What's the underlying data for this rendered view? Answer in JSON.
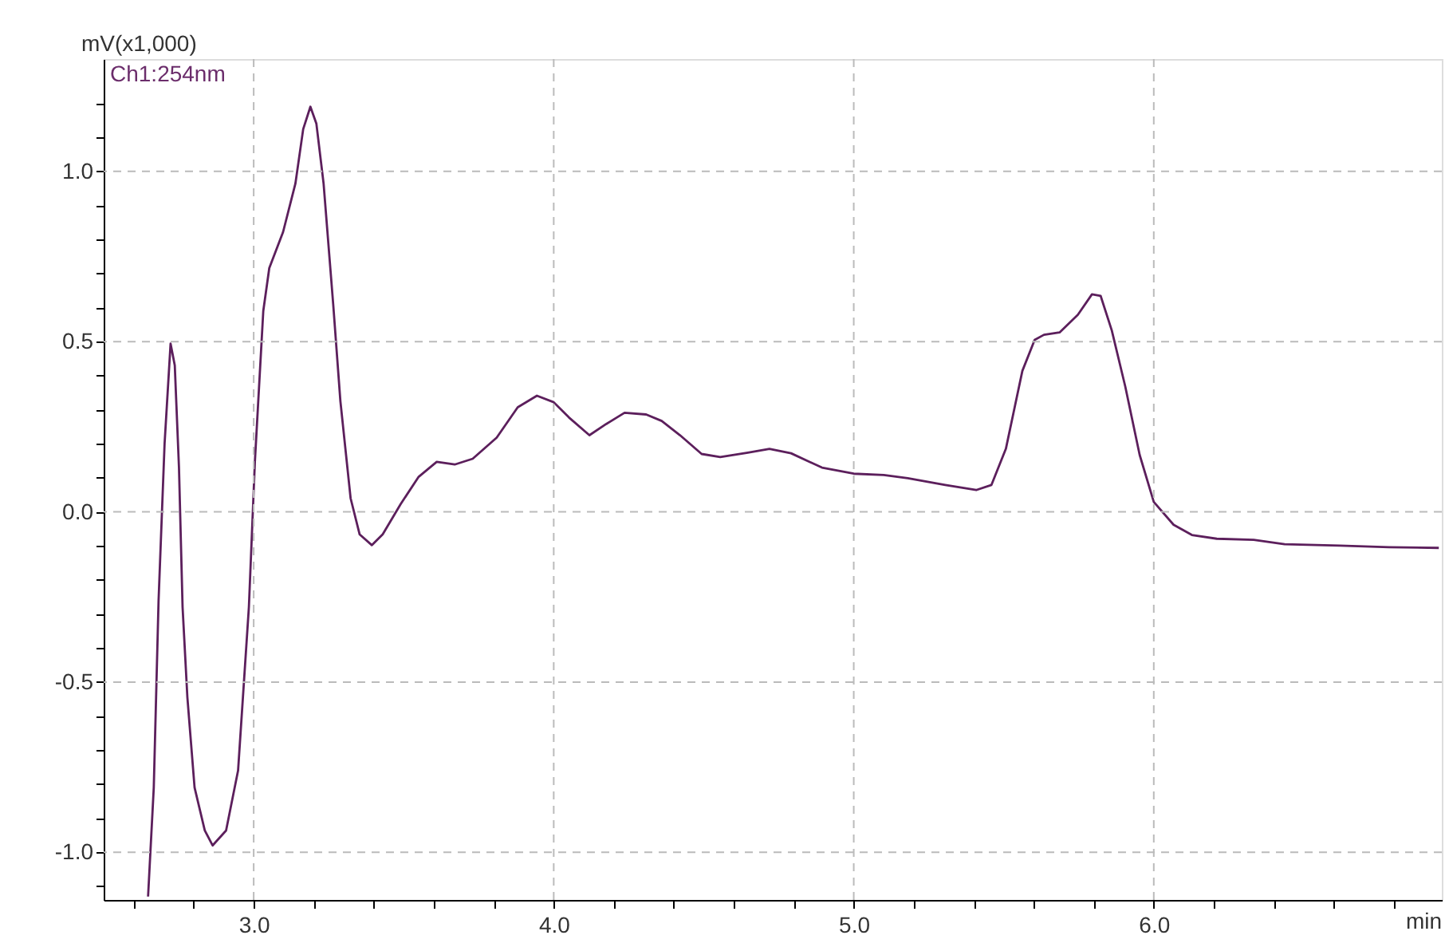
{
  "chart_data": {
    "type": "line",
    "xlabel": "min",
    "ylabel": "mV(x1,000)",
    "annotations": [
      "Ch1:254nm"
    ],
    "x": [
      2.648,
      2.667,
      2.683,
      2.703,
      2.723,
      2.737,
      2.751,
      2.763,
      2.779,
      2.803,
      2.837,
      2.863,
      2.908,
      2.948,
      2.984,
      3.004,
      3.032,
      3.052,
      3.098,
      3.139,
      3.165,
      3.189,
      3.209,
      3.233,
      3.265,
      3.289,
      3.323,
      3.353,
      3.394,
      3.43,
      3.49,
      3.55,
      3.61,
      3.67,
      3.73,
      3.81,
      3.88,
      3.944,
      4.0,
      4.051,
      4.119,
      4.175,
      4.236,
      4.308,
      4.36,
      4.421,
      4.493,
      4.555,
      4.647,
      4.719,
      4.791,
      4.894,
      5.0,
      5.1,
      5.18,
      5.305,
      5.408,
      5.459,
      5.507,
      5.562,
      5.603,
      5.634,
      5.686,
      5.747,
      5.794,
      5.823,
      5.86,
      5.905,
      5.953,
      6.0,
      6.066,
      6.127,
      6.21,
      6.333,
      6.436,
      6.62,
      6.784,
      6.95
    ],
    "series": [
      {
        "color": "#5c1f5c",
        "values": [
          -1.13,
          -0.81,
          -0.26,
          0.2,
          0.494,
          0.43,
          0.13,
          -0.28,
          -0.545,
          -0.81,
          -0.936,
          -0.98,
          -0.936,
          -0.76,
          -0.28,
          0.147,
          0.59,
          0.716,
          0.822,
          0.964,
          1.124,
          1.19,
          1.14,
          0.964,
          0.61,
          0.325,
          0.04,
          -0.066,
          -0.098,
          -0.066,
          0.023,
          0.103,
          0.147,
          0.139,
          0.156,
          0.218,
          0.307,
          0.341,
          0.322,
          0.277,
          0.225,
          0.258,
          0.291,
          0.286,
          0.267,
          0.225,
          0.17,
          0.161,
          0.174,
          0.185,
          0.172,
          0.13,
          0.112,
          0.108,
          0.099,
          0.079,
          0.064,
          0.079,
          0.185,
          0.414,
          0.505,
          0.52,
          0.527,
          0.579,
          0.639,
          0.634,
          0.533,
          0.368,
          0.167,
          0.029,
          -0.038,
          -0.068,
          -0.079,
          -0.082,
          -0.095,
          -0.099,
          -0.104,
          -0.106
        ]
      }
    ],
    "xlim": [
      2.5,
      6.96
    ],
    "ylim": [
      -1.14,
      1.33
    ],
    "xticks": [
      {
        "value": 2.6,
        "label": null
      },
      {
        "value": 2.8,
        "label": null
      },
      {
        "value": 3,
        "label": "3.0"
      },
      {
        "value": 3.2,
        "label": null
      },
      {
        "value": 3.4,
        "label": null
      },
      {
        "value": 3.6,
        "label": null
      },
      {
        "value": 3.8,
        "label": null
      },
      {
        "value": 4,
        "label": "4.0"
      },
      {
        "value": 4.2,
        "label": null
      },
      {
        "value": 4.4,
        "label": null
      },
      {
        "value": 4.6,
        "label": null
      },
      {
        "value": 4.8,
        "label": null
      },
      {
        "value": 5,
        "label": "5.0"
      },
      {
        "value": 5.2,
        "label": null
      },
      {
        "value": 5.4,
        "label": null
      },
      {
        "value": 5.6,
        "label": null
      },
      {
        "value": 5.8,
        "label": null
      },
      {
        "value": 6,
        "label": "6.0"
      },
      {
        "value": 6.2,
        "label": null
      },
      {
        "value": 6.4,
        "label": null
      },
      {
        "value": 6.6,
        "label": null
      },
      {
        "value": 6.8,
        "label": null
      }
    ],
    "yticks": [
      {
        "value": -1.1,
        "label": null
      },
      {
        "value": -1,
        "label": "-1.0"
      },
      {
        "value": -0.9,
        "label": null
      },
      {
        "value": -0.8,
        "label": null
      },
      {
        "value": -0.7,
        "label": null
      },
      {
        "value": -0.6,
        "label": null
      },
      -0.5,
      {
        "value": -0.4,
        "label": null
      },
      {
        "value": -0.3,
        "label": null
      },
      {
        "value": -0.2,
        "label": null
      },
      {
        "value": -0.1,
        "label": null
      },
      {
        "value": 0,
        "label": "0.0"
      },
      {
        "value": 0.1,
        "label": null
      },
      {
        "value": 0.2,
        "label": null
      },
      {
        "value": 0.3,
        "label": null
      },
      {
        "value": 0.4,
        "label": null
      },
      0.5,
      {
        "value": 0.6,
        "label": null
      },
      {
        "value": 0.7,
        "label": null
      },
      {
        "value": 0.8,
        "label": null
      },
      {
        "value": 0.9,
        "label": null
      },
      {
        "value": 1,
        "label": "1.0"
      },
      {
        "value": 1.1,
        "label": null
      },
      {
        "value": 1.2,
        "label": null
      }
    ],
    "grid": true,
    "line_style": "solid",
    "marker": "none"
  }
}
